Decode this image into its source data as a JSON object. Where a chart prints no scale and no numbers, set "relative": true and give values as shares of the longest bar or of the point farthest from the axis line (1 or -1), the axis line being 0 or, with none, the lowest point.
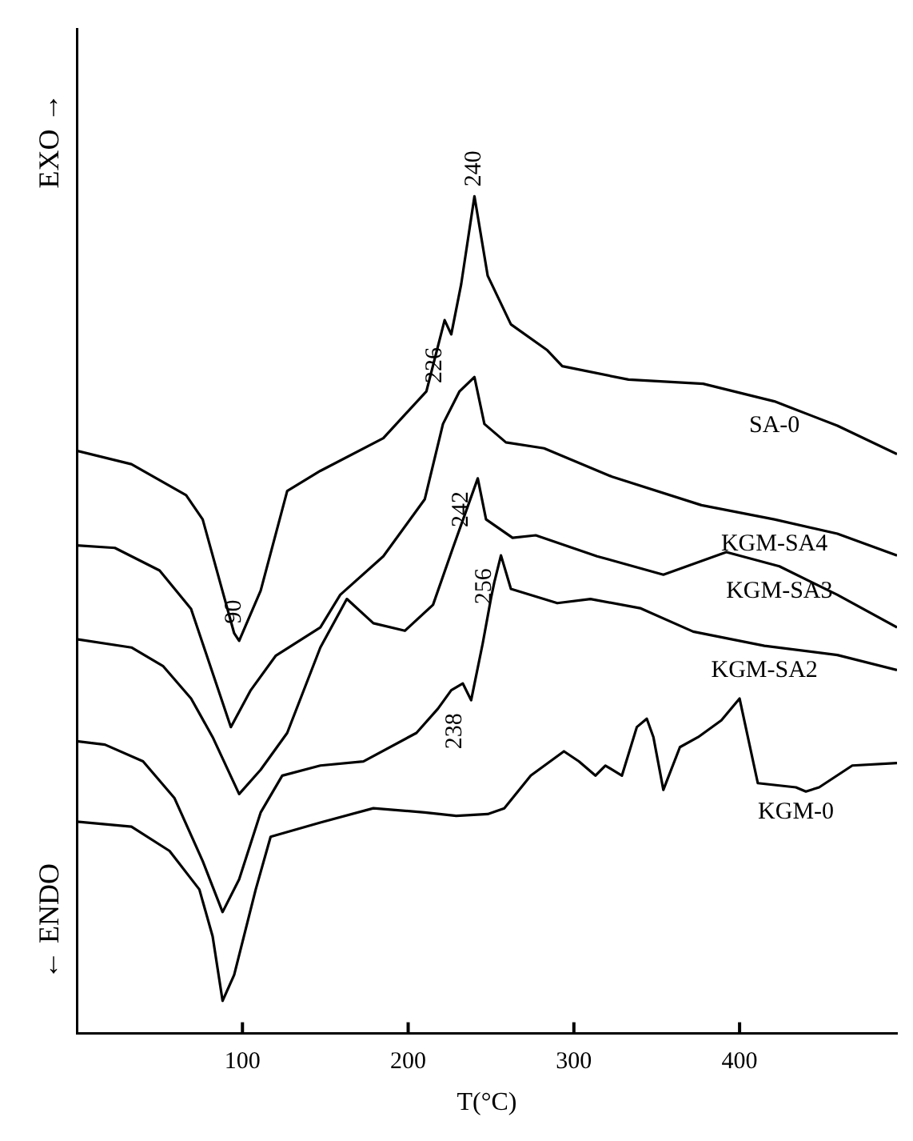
{
  "chart_data": {
    "type": "line",
    "xlabel": "T(°C)",
    "xlim": [
      0,
      495
    ],
    "xticks": [
      100,
      200,
      300,
      400
    ],
    "relative": true,
    "grid": false,
    "legend": false,
    "marker": "none",
    "line_style": "solid",
    "series": [
      {
        "name": "SA-0",
        "color": "#000000",
        "x": [
          0,
          33,
          66,
          76,
          95,
          98,
          111,
          127,
          147,
          185,
          211,
          222,
          226,
          232,
          240,
          248,
          262,
          284,
          293,
          333,
          378,
          421,
          459,
          495
        ],
        "values": [
          0.696,
          0.68,
          0.643,
          0.614,
          0.478,
          0.469,
          0.529,
          0.648,
          0.672,
          0.711,
          0.767,
          0.852,
          0.835,
          0.895,
          1.0,
          0.905,
          0.847,
          0.816,
          0.797,
          0.781,
          0.776,
          0.755,
          0.726,
          0.692
        ]
      },
      {
        "name": "KGM-SA4",
        "color": "#000000",
        "x": [
          0,
          23,
          50,
          69,
          93,
          105,
          120,
          147,
          159,
          185,
          210,
          221,
          231,
          240,
          246,
          259,
          282,
          323,
          377,
          421,
          459,
          495
        ],
        "values": [
          0.583,
          0.58,
          0.553,
          0.507,
          0.366,
          0.41,
          0.451,
          0.485,
          0.524,
          0.57,
          0.638,
          0.728,
          0.767,
          0.784,
          0.728,
          0.706,
          0.699,
          0.665,
          0.631,
          0.614,
          0.597,
          0.571
        ]
      },
      {
        "name": "KGM-SA3",
        "color": "#000000",
        "x": [
          0,
          33,
          52,
          69,
          82,
          98,
          111,
          127,
          147,
          163,
          179,
          198,
          215,
          227,
          242,
          247,
          263,
          277,
          314,
          354,
          392,
          424,
          459,
          495
        ],
        "values": [
          0.471,
          0.461,
          0.439,
          0.4,
          0.354,
          0.286,
          0.315,
          0.359,
          0.461,
          0.519,
          0.49,
          0.481,
          0.512,
          0.58,
          0.663,
          0.614,
          0.592,
          0.595,
          0.57,
          0.548,
          0.575,
          0.558,
          0.524,
          0.485
        ]
      },
      {
        "name": "KGM-SA2",
        "color": "#000000",
        "x": [
          0,
          17,
          40,
          59,
          76,
          88,
          98,
          111,
          124,
          147,
          173,
          205,
          218,
          226,
          233,
          238,
          245,
          250,
          252,
          256,
          262,
          290,
          310,
          340,
          372,
          415,
          459,
          495
        ],
        "values": [
          0.349,
          0.345,
          0.325,
          0.281,
          0.206,
          0.145,
          0.184,
          0.264,
          0.308,
          0.32,
          0.325,
          0.359,
          0.388,
          0.41,
          0.418,
          0.398,
          0.466,
          0.52,
          0.539,
          0.571,
          0.531,
          0.514,
          0.519,
          0.508,
          0.48,
          0.463,
          0.452,
          0.434
        ]
      },
      {
        "name": "KGM-0",
        "color": "#000000",
        "x": [
          0,
          33,
          56,
          74,
          82,
          88,
          95,
          108,
          117,
          147,
          179,
          210,
          229,
          248,
          258,
          274,
          294,
          303,
          313,
          319,
          329,
          338,
          344,
          348,
          354,
          364,
          375,
          389,
          400,
          411,
          434,
          440,
          448,
          468,
          495
        ],
        "values": [
          0.253,
          0.247,
          0.218,
          0.172,
          0.116,
          0.039,
          0.07,
          0.172,
          0.235,
          0.252,
          0.269,
          0.264,
          0.26,
          0.262,
          0.269,
          0.308,
          0.337,
          0.325,
          0.308,
          0.32,
          0.308,
          0.366,
          0.376,
          0.354,
          0.291,
          0.342,
          0.354,
          0.374,
          0.4,
          0.299,
          0.294,
          0.289,
          0.294,
          0.32,
          0.323
        ]
      }
    ],
    "annotations": [
      {
        "text": "240",
        "x": 240,
        "y": 1.0
      },
      {
        "text": "226",
        "x": 226,
        "y": 0.835
      },
      {
        "text": "90",
        "x": 95,
        "y": 0.478
      },
      {
        "text": "242",
        "x": 242,
        "y": 0.663
      },
      {
        "text": "256",
        "x": 256,
        "y": 0.571
      },
      {
        "text": "238",
        "x": 238,
        "y": 0.398
      },
      "EXO →",
      "← ENDO"
    ]
  }
}
